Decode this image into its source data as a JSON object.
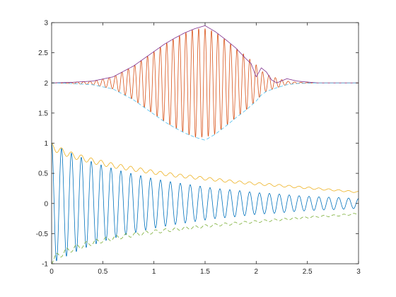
{
  "chart_data": {
    "type": "line",
    "title": "",
    "xlabel": "",
    "ylabel": "",
    "xlim": [
      0,
      3
    ],
    "ylim": [
      -1,
      3
    ],
    "grid": false,
    "legend": "none",
    "x_ticks": [
      {
        "value": 0,
        "label": "0"
      },
      {
        "value": 0.5,
        "label": "0.5"
      },
      {
        "value": 1,
        "label": "1"
      },
      {
        "value": 1.5,
        "label": "1.5"
      },
      {
        "value": 2,
        "label": "2"
      },
      {
        "value": 2.5,
        "label": "2.5"
      },
      {
        "value": 3,
        "label": "3"
      }
    ],
    "y_ticks": [
      {
        "value": -1,
        "label": "-1"
      },
      {
        "value": -0.5,
        "label": "-0.5"
      },
      {
        "value": 0,
        "label": "0"
      },
      {
        "value": 0.5,
        "label": "0.5"
      },
      {
        "value": 1,
        "label": "1"
      },
      {
        "value": 1.5,
        "label": "1.5"
      },
      {
        "value": 2,
        "label": "2"
      },
      {
        "value": 2.5,
        "label": "2.5"
      },
      {
        "value": 3,
        "label": "3"
      }
    ],
    "series": [
      {
        "id": "decaying-signal",
        "color": "#0072bd",
        "dash": "solid",
        "x": [
          0,
          0.05,
          0.1,
          0.15,
          0.2,
          0.25,
          0.3,
          0.35,
          0.4,
          0.45,
          0.5,
          0.6,
          0.7,
          0.8,
          0.9,
          1.0,
          1.2,
          1.4,
          1.6,
          1.8,
          2.0,
          2.2,
          2.4,
          2.6,
          2.8,
          3.0
        ],
        "y": [
          1.0,
          0.95,
          0.91,
          0.87,
          0.83,
          0.79,
          0.76,
          0.72,
          0.69,
          0.66,
          0.63,
          0.58,
          0.53,
          0.49,
          0.45,
          0.41,
          0.35,
          0.3,
          0.25,
          0.22,
          0.18,
          0.16,
          0.13,
          0.11,
          0.1,
          0.08
        ],
        "oscillation": "symmetric about 0, amplitude given by y, 31 cycles over x in [0, 3]"
      },
      {
        "id": "upper-envelope",
        "color": "#edb120",
        "dash": "solid",
        "x": [
          0,
          0.1,
          0.2,
          0.3,
          0.4,
          0.5,
          0.6,
          0.8,
          1.0,
          1.2,
          1.4,
          1.6,
          1.8,
          2.0,
          2.2,
          2.4,
          2.6,
          2.8,
          3.0
        ],
        "y": [
          1.0,
          0.92,
          0.85,
          0.8,
          0.75,
          0.71,
          0.67,
          0.61,
          0.55,
          0.5,
          0.46,
          0.42,
          0.38,
          0.35,
          0.32,
          0.29,
          0.26,
          0.23,
          0.2
        ],
        "ripple": 0.12
      },
      {
        "id": "lower-envelope",
        "color": "#77ac30",
        "dash": "dashed",
        "x": [
          0,
          0.1,
          0.2,
          0.3,
          0.4,
          0.5,
          0.6,
          0.8,
          1.0,
          1.2,
          1.4,
          1.6,
          1.8,
          2.0,
          2.2,
          2.4,
          2.6,
          2.8,
          3.0
        ],
        "y": [
          -1.0,
          -0.88,
          -0.8,
          -0.74,
          -0.69,
          -0.65,
          -0.61,
          -0.55,
          -0.5,
          -0.46,
          -0.42,
          -0.38,
          -0.35,
          -0.32,
          -0.29,
          -0.26,
          -0.23,
          -0.21,
          -0.18
        ],
        "ripple": 0.12
      },
      {
        "id": "modulated-signal",
        "color": "#d95319",
        "dash": "solid",
        "x": [
          0,
          0.2,
          0.4,
          0.6,
          0.8,
          0.9,
          1.0,
          1.1,
          1.2,
          1.3,
          1.4,
          1.5,
          1.6,
          1.7,
          1.8,
          1.9,
          2.0,
          2.05,
          2.1,
          2.2,
          2.3,
          2.4,
          2.6,
          3.0
        ],
        "y": [
          0.0,
          0.01,
          0.03,
          0.1,
          0.28,
          0.4,
          0.52,
          0.64,
          0.74,
          0.83,
          0.9,
          0.9,
          0.85,
          0.72,
          0.58,
          0.45,
          0.3,
          0.2,
          0.14,
          0.08,
          0.03,
          0.01,
          0.0,
          0.0
        ],
        "baseline": 2,
        "oscillation": "symmetric about 2, amplitude given by y, 48 cycles over x in [0, 3]"
      },
      {
        "id": "modulated-upper-envelope",
        "color": "#7e2f8e",
        "dash": "solid",
        "x": [
          0,
          0.2,
          0.4,
          0.6,
          0.8,
          0.9,
          1.0,
          1.1,
          1.2,
          1.3,
          1.4,
          1.5,
          1.6,
          1.7,
          1.8,
          1.9,
          1.95,
          2.0,
          2.05,
          2.1,
          2.15,
          2.2,
          2.3,
          2.4,
          2.6,
          3.0
        ],
        "y": [
          2.0,
          2.01,
          2.03,
          2.1,
          2.28,
          2.4,
          2.52,
          2.64,
          2.74,
          2.83,
          2.9,
          2.95,
          2.85,
          2.72,
          2.58,
          2.4,
          2.32,
          2.1,
          2.25,
          2.18,
          2.05,
          2.0,
          2.07,
          2.03,
          2.0,
          2.0
        ]
      },
      {
        "id": "modulated-lower-envelope",
        "color": "#4dbeee",
        "dash": "dashed",
        "x": [
          0,
          0.2,
          0.4,
          0.6,
          0.8,
          0.9,
          1.0,
          1.1,
          1.2,
          1.3,
          1.4,
          1.5,
          1.6,
          1.7,
          1.8,
          1.9,
          2.0,
          2.05,
          2.1,
          2.2,
          2.3,
          2.4,
          2.6,
          3.0
        ],
        "y": [
          2.0,
          1.99,
          1.97,
          1.9,
          1.72,
          1.6,
          1.48,
          1.36,
          1.26,
          1.17,
          1.1,
          1.05,
          1.15,
          1.28,
          1.42,
          1.55,
          1.7,
          1.8,
          1.86,
          1.92,
          1.97,
          1.99,
          2.0,
          2.0
        ]
      }
    ]
  }
}
